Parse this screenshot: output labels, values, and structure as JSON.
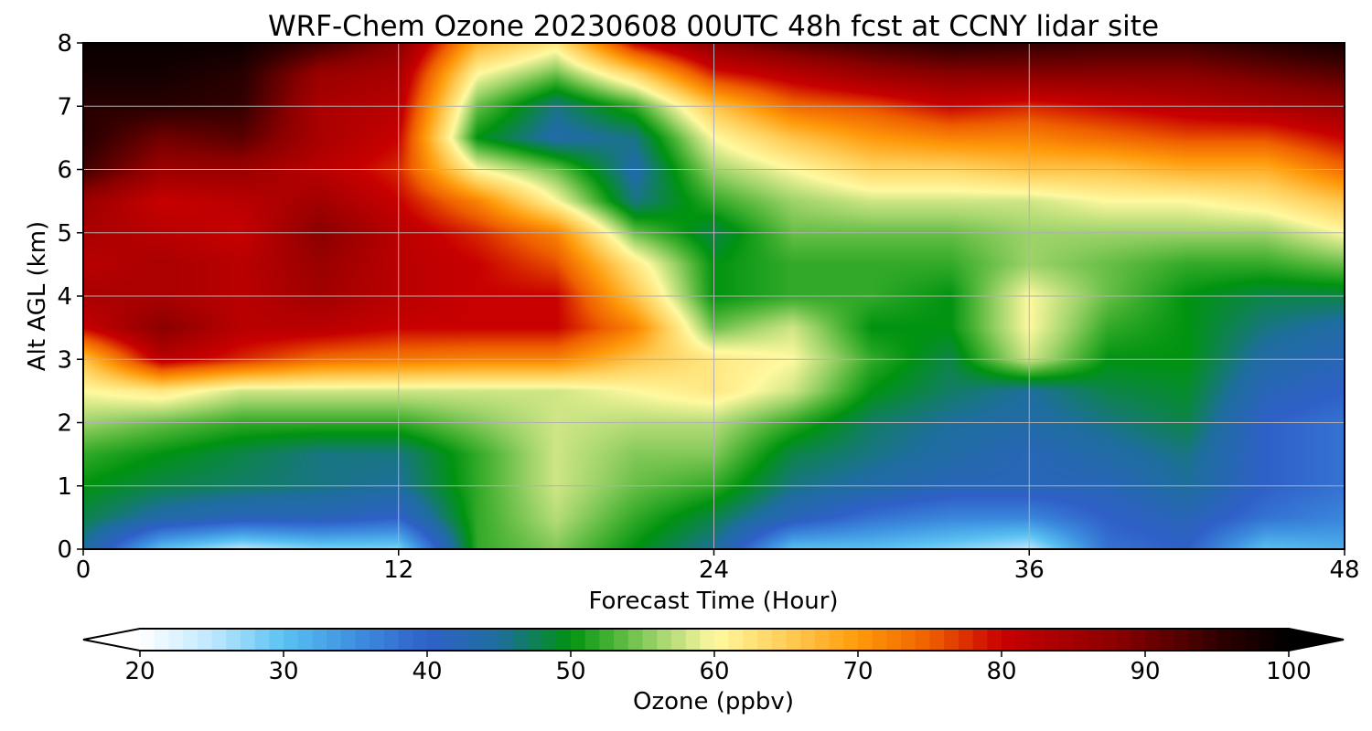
{
  "chart_data": {
    "type": "heatmap",
    "title": "WRF-Chem Ozone  20230608 00UTC 48h fcst at CCNY lidar site",
    "xlabel": "Forecast Time (Hour)",
    "ylabel": "Alt AGL (km)",
    "xlim": [
      0,
      48
    ],
    "ylim": [
      0,
      8
    ],
    "x_ticks": [
      0,
      12,
      24,
      36,
      48
    ],
    "y_ticks": [
      0,
      1,
      2,
      3,
      4,
      5,
      6,
      7,
      8
    ],
    "grid": true,
    "x": [
      0,
      3,
      6,
      9,
      12,
      15,
      18,
      21,
      24,
      27,
      30,
      33,
      36,
      39,
      42,
      45,
      48
    ],
    "y": [
      0,
      0.5,
      1,
      1.5,
      2,
      2.5,
      3,
      3.5,
      4,
      4.5,
      5,
      5.5,
      6,
      6.5,
      7,
      7.5,
      8
    ],
    "z": [
      [
        45,
        30,
        25,
        28,
        28,
        52,
        55,
        50,
        45,
        30,
        30,
        28,
        25,
        38,
        40,
        30,
        32
      ],
      [
        48,
        44,
        42,
        42,
        40,
        52,
        57,
        52,
        48,
        42,
        38,
        36,
        36,
        40,
        42,
        38,
        36
      ],
      [
        50,
        48,
        47,
        46,
        45,
        52,
        58,
        54,
        52,
        46,
        44,
        42,
        42,
        42,
        45,
        40,
        38
      ],
      [
        52,
        50,
        48,
        46,
        46,
        52,
        58,
        55,
        55,
        48,
        46,
        44,
        42,
        44,
        46,
        40,
        38
      ],
      [
        56,
        54,
        52,
        52,
        52,
        55,
        58,
        57,
        57,
        52,
        47,
        45,
        44,
        46,
        48,
        40,
        38
      ],
      [
        60,
        62,
        58,
        58,
        58,
        58,
        58,
        60,
        62,
        58,
        50,
        47,
        45,
        48,
        49,
        42,
        40
      ],
      [
        66,
        82,
        78,
        74,
        73,
        72,
        72,
        66,
        62,
        60,
        52,
        48,
        58,
        50,
        50,
        44,
        42
      ],
      [
        80,
        88,
        82,
        82,
        80,
        80,
        80,
        72,
        54,
        58,
        50,
        50,
        60,
        52,
        50,
        46,
        44
      ],
      [
        84,
        84,
        82,
        85,
        82,
        80,
        80,
        66,
        50,
        52,
        52,
        50,
        60,
        54,
        50,
        48,
        48
      ],
      [
        82,
        84,
        82,
        86,
        82,
        80,
        76,
        62,
        50,
        52,
        52,
        52,
        56,
        54,
        52,
        52,
        54
      ],
      [
        84,
        82,
        80,
        88,
        82,
        78,
        72,
        54,
        48,
        54,
        54,
        54,
        56,
        56,
        56,
        56,
        60
      ],
      [
        86,
        80,
        82,
        85,
        80,
        72,
        60,
        46,
        52,
        56,
        58,
        58,
        58,
        60,
        60,
        62,
        66
      ],
      [
        94,
        86,
        86,
        82,
        78,
        60,
        54,
        44,
        56,
        60,
        64,
        64,
        66,
        66,
        68,
        68,
        74
      ],
      [
        96,
        90,
        92,
        84,
        80,
        50,
        44,
        46,
        60,
        66,
        70,
        72,
        72,
        74,
        76,
        76,
        80
      ],
      [
        96,
        96,
        95,
        84,
        82,
        54,
        46,
        52,
        66,
        74,
        76,
        80,
        78,
        80,
        82,
        84,
        86
      ],
      [
        98,
        98,
        96,
        86,
        84,
        60,
        54,
        64,
        78,
        82,
        86,
        88,
        88,
        88,
        88,
        90,
        92
      ],
      [
        99,
        99,
        99,
        94,
        88,
        68,
        62,
        80,
        88,
        92,
        94,
        96,
        95,
        94,
        94,
        96,
        98
      ]
    ],
    "colorbar": {
      "label": "Ozone  (ppbv)",
      "min": 20,
      "max": 100,
      "ticks": [
        20,
        30,
        40,
        50,
        60,
        70,
        80,
        90,
        100
      ],
      "extend": "both",
      "stops": [
        {
          "v": 20,
          "c": "#ffffff"
        },
        {
          "v": 25,
          "c": "#bfe8ff"
        },
        {
          "v": 30,
          "c": "#5ac2f2"
        },
        {
          "v": 35,
          "c": "#3d8fe0"
        },
        {
          "v": 40,
          "c": "#2f60c8"
        },
        {
          "v": 45,
          "c": "#1e6e9e"
        },
        {
          "v": 50,
          "c": "#009310"
        },
        {
          "v": 53,
          "c": "#4cb436"
        },
        {
          "v": 56,
          "c": "#9ed36a"
        },
        {
          "v": 60,
          "c": "#fff9a0"
        },
        {
          "v": 65,
          "c": "#ffce58"
        },
        {
          "v": 70,
          "c": "#ff9a0a"
        },
        {
          "v": 75,
          "c": "#ef5f00"
        },
        {
          "v": 80,
          "c": "#c80000"
        },
        {
          "v": 88,
          "c": "#8b0000"
        },
        {
          "v": 95,
          "c": "#320000"
        },
        {
          "v": 100,
          "c": "#000000"
        }
      ]
    }
  }
}
